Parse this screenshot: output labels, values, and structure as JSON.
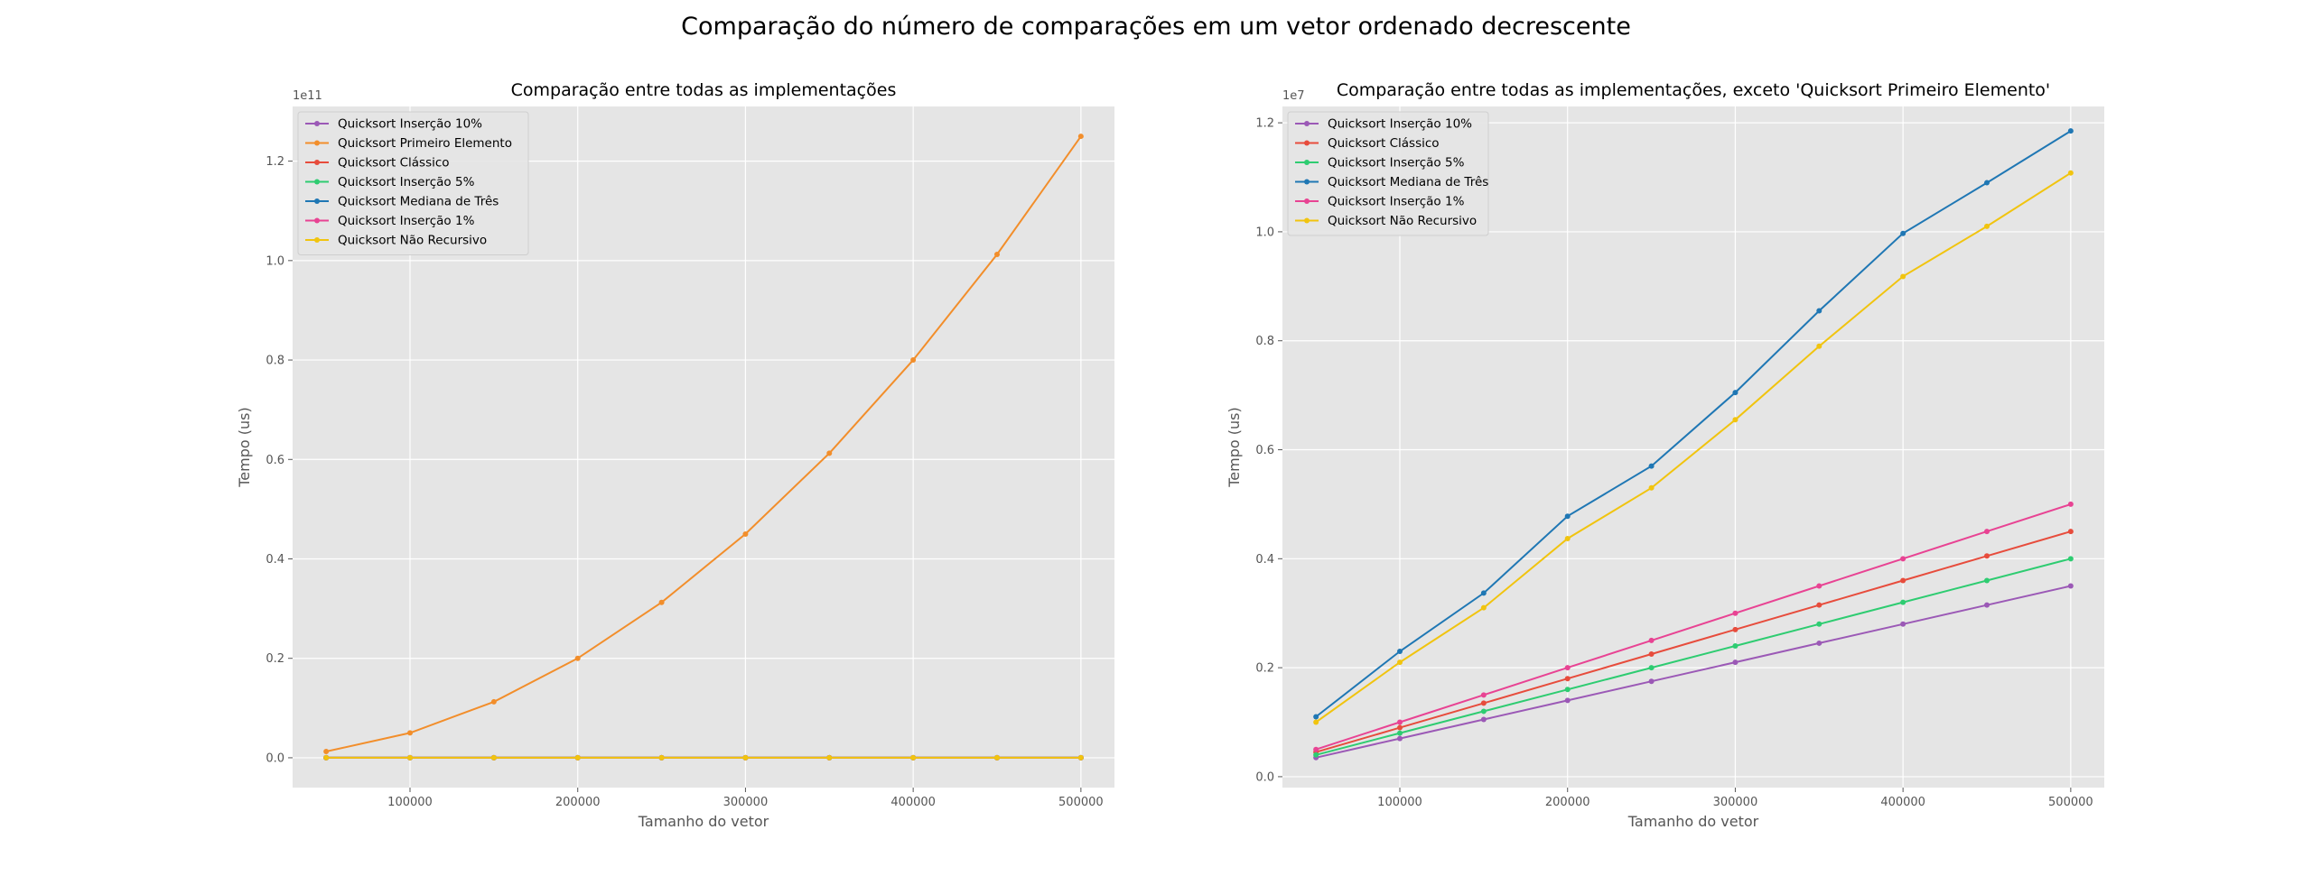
{
  "figure": {
    "suptitle": "Comparação do número de comparações em um vetor ordenado decrescente"
  },
  "chart_data": [
    {
      "type": "line",
      "title": "Comparação entre todas as implementações",
      "xlabel": "Tamanho do vetor",
      "ylabel": "Tempo (us)",
      "offset_text": "1e11",
      "xlim": [
        30000,
        520000
      ],
      "ylim": [
        -0.06,
        1.31
      ],
      "xticks": [
        100000,
        200000,
        300000,
        400000,
        500000
      ],
      "xtick_labels": [
        "100000",
        "200000",
        "300000",
        "400000",
        "500000"
      ],
      "yticks": [
        0,
        0.2,
        0.4,
        0.6,
        0.8,
        1.0,
        1.2
      ],
      "ytick_labels": [
        "0.0",
        "0.2",
        "0.4",
        "0.6",
        "0.8",
        "1.0",
        "1.2"
      ],
      "grid": true,
      "legend": "upper-left",
      "x": [
        50000,
        100000,
        150000,
        200000,
        250000,
        300000,
        350000,
        400000,
        450000,
        500000
      ],
      "series": [
        {
          "name": "Quicksort Inserção 10%",
          "color": "#9b59b6",
          "values": [
            3.5e-06,
            7e-06,
            1.05e-05,
            1.4e-05,
            1.75e-05,
            2.1e-05,
            2.45e-05,
            2.8e-05,
            3.15e-05,
            3.5e-05
          ]
        },
        {
          "name": "Quicksort Primeiro Elemento",
          "color": "#f28e2b",
          "values": [
            0.0125,
            0.05,
            0.1125,
            0.2,
            0.3125,
            0.45,
            0.6125,
            0.8,
            1.0125,
            1.25
          ]
        },
        {
          "name": "Quicksort Clássico",
          "color": "#e74c3c",
          "values": [
            4.5e-06,
            9e-06,
            1.35e-05,
            1.8e-05,
            2.25e-05,
            2.7e-05,
            3.15e-05,
            3.6e-05,
            4.05e-05,
            4.5e-05
          ]
        },
        {
          "name": "Quicksort Inserção 5%",
          "color": "#2ecc71",
          "values": [
            4e-06,
            8e-06,
            1.2e-05,
            1.6e-05,
            2e-05,
            2.4e-05,
            2.8e-05,
            3.2e-05,
            3.6e-05,
            4e-05
          ]
        },
        {
          "name": "Quicksort Mediana de Três",
          "color": "#1f77b4",
          "values": [
            1.1e-05,
            2.3e-05,
            3.37e-05,
            4.78e-05,
            5.7e-05,
            7.05e-05,
            8.55e-05,
            9.97e-05,
            0.000109,
            0.0001185
          ]
        },
        {
          "name": "Quicksort Inserção 1%",
          "color": "#e84393",
          "values": [
            5e-06,
            1e-05,
            1.5e-05,
            2e-05,
            2.5e-05,
            3e-05,
            3.5e-05,
            4e-05,
            4.5e-05,
            5e-05
          ]
        },
        {
          "name": "Quicksort Não Recursivo",
          "color": "#f1c40f",
          "values": [
            1e-05,
            2.1e-05,
            3.1e-05,
            4.37e-05,
            5.3e-05,
            6.55e-05,
            7.9e-05,
            9.18e-05,
            0.000101,
            0.0001108
          ]
        }
      ]
    },
    {
      "type": "line",
      "title": "Comparação entre todas as implementações, exceto 'Quicksort Primeiro Elemento'",
      "xlabel": "Tamanho do vetor",
      "ylabel": "Tempo (us)",
      "offset_text": "1e7",
      "xlim": [
        30000,
        520000
      ],
      "ylim": [
        -0.02,
        1.23
      ],
      "xticks": [
        100000,
        200000,
        300000,
        400000,
        500000
      ],
      "xtick_labels": [
        "100000",
        "200000",
        "300000",
        "400000",
        "500000"
      ],
      "yticks": [
        0,
        0.2,
        0.4,
        0.6,
        0.8,
        1.0,
        1.2
      ],
      "ytick_labels": [
        "0.0",
        "0.2",
        "0.4",
        "0.6",
        "0.8",
        "1.0",
        "1.2"
      ],
      "grid": true,
      "legend": "upper-left",
      "x": [
        50000,
        100000,
        150000,
        200000,
        250000,
        300000,
        350000,
        400000,
        450000,
        500000
      ],
      "series": [
        {
          "name": "Quicksort Inserção 10%",
          "color": "#9b59b6",
          "values": [
            0.035,
            0.07,
            0.105,
            0.14,
            0.175,
            0.21,
            0.245,
            0.28,
            0.315,
            0.35
          ]
        },
        {
          "name": "Quicksort Clássico",
          "color": "#e74c3c",
          "values": [
            0.045,
            0.09,
            0.135,
            0.18,
            0.225,
            0.27,
            0.315,
            0.36,
            0.405,
            0.45
          ]
        },
        {
          "name": "Quicksort Inserção 5%",
          "color": "#2ecc71",
          "values": [
            0.04,
            0.08,
            0.12,
            0.16,
            0.2,
            0.24,
            0.28,
            0.32,
            0.36,
            0.4
          ]
        },
        {
          "name": "Quicksort Mediana de Três",
          "color": "#1f77b4",
          "values": [
            0.11,
            0.23,
            0.337,
            0.478,
            0.57,
            0.705,
            0.855,
            0.997,
            1.09,
            1.185
          ]
        },
        {
          "name": "Quicksort Inserção 1%",
          "color": "#e84393",
          "values": [
            0.05,
            0.1,
            0.15,
            0.2,
            0.25,
            0.3,
            0.35,
            0.4,
            0.45,
            0.5
          ]
        },
        {
          "name": "Quicksort Não Recursivo",
          "color": "#f1c40f",
          "values": [
            0.1,
            0.21,
            0.31,
            0.437,
            0.53,
            0.655,
            0.79,
            0.918,
            1.01,
            1.108
          ]
        }
      ]
    }
  ]
}
